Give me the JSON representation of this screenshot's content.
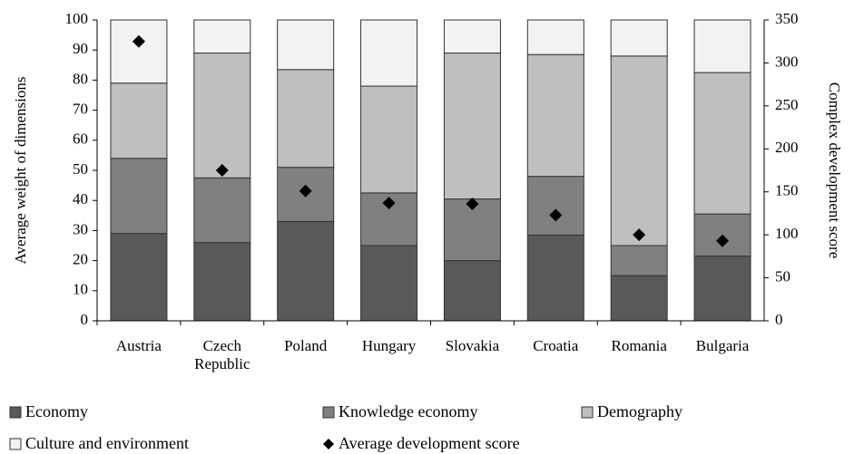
{
  "chart_data": {
    "type": "bar",
    "stacked": true,
    "categories": [
      "Austria",
      "Czech Republic",
      "Poland",
      "Hungary",
      "Slovakia",
      "Croatia",
      "Romania",
      "Bulgaria"
    ],
    "y_label": "Average weight of dimensions",
    "y2_label": "Complex development score",
    "ylim": [
      0,
      100
    ],
    "yticks": [
      0,
      10,
      20,
      30,
      40,
      50,
      60,
      70,
      80,
      90,
      100
    ],
    "y2lim": [
      0,
      350
    ],
    "y2ticks": [
      0,
      50,
      100,
      150,
      200,
      250,
      300,
      350
    ],
    "series": [
      {
        "name": "Economy",
        "color": "#595959",
        "values": [
          29,
          26,
          33,
          25,
          20,
          28.5,
          15,
          21.5
        ]
      },
      {
        "name": "Knowledge economy",
        "color": "#808080",
        "values": [
          25,
          21.5,
          18,
          17.5,
          20.5,
          19.5,
          10,
          14
        ]
      },
      {
        "name": "Demography",
        "color": "#bfbfbf",
        "values": [
          25,
          41.5,
          32.5,
          35.5,
          48.5,
          40.5,
          63,
          47
        ]
      },
      {
        "name": "Culture and environment",
        "color": "#f2f2f2",
        "values": [
          21,
          11,
          16.5,
          22,
          11,
          11.5,
          12,
          17.5
        ]
      },
      {
        "name": "Average development score",
        "color": "#000000",
        "axis": "y2",
        "marker": "diamond",
        "values": [
          325,
          175,
          151,
          137,
          136,
          123,
          100,
          93
        ]
      }
    ]
  }
}
